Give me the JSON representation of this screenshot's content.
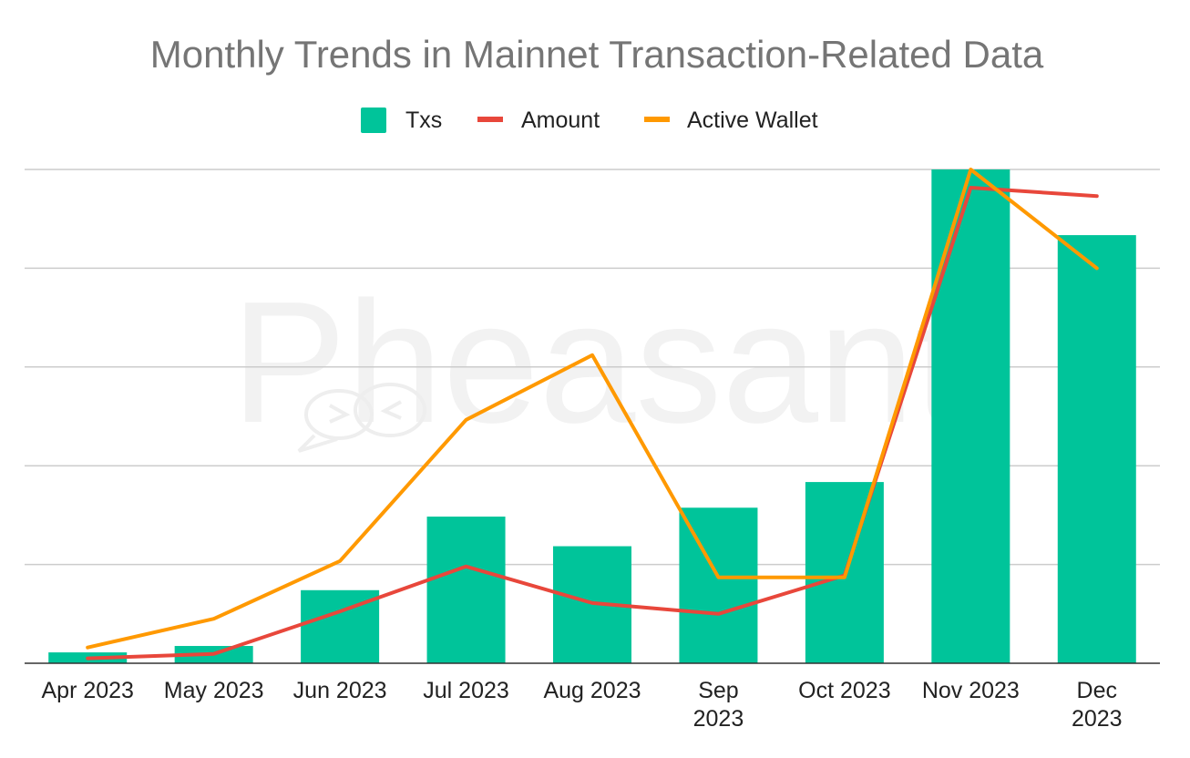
{
  "colors": {
    "txs": "#00C49A",
    "amount": "#E8473B",
    "active_wallet": "#FF9900",
    "grid": "#cccccc",
    "axis": "#333333",
    "watermark": "#f2f2f2"
  },
  "watermark": {
    "text": "Pheasant"
  },
  "chart_data": {
    "type": "bar",
    "title": "Monthly Trends in Mainnet Transaction-Related Data",
    "xlabel": "",
    "ylabel": "",
    "ylim": [
      0,
      100
    ],
    "grid": true,
    "legend_position": "top",
    "categories": [
      [
        "Apr 2023"
      ],
      [
        "May 2023"
      ],
      [
        "Jun 2023"
      ],
      [
        "Jul 2023"
      ],
      [
        "Aug 2023"
      ],
      [
        "Sep",
        "2023"
      ],
      [
        "Oct 2023"
      ],
      [
        "Nov 2023"
      ],
      [
        "Dec",
        "2023"
      ]
    ],
    "series": [
      {
        "name": "Txs",
        "type": "bar",
        "color": "#00C49A",
        "values": [
          2.2,
          3.5,
          14.8,
          29.7,
          23.7,
          31.5,
          36.7,
          100,
          86.7
        ]
      },
      {
        "name": "Amount",
        "type": "line",
        "color": "#E8473B",
        "values": [
          1,
          1.9,
          10.5,
          19.6,
          12.2,
          10,
          17.8,
          96.3,
          94.6
        ]
      },
      {
        "name": "Active Wallet",
        "type": "line",
        "color": "#FF9900",
        "values": [
          3.2,
          9,
          20.7,
          49.3,
          62.4,
          17.4,
          17.4,
          100,
          80
        ]
      }
    ]
  }
}
